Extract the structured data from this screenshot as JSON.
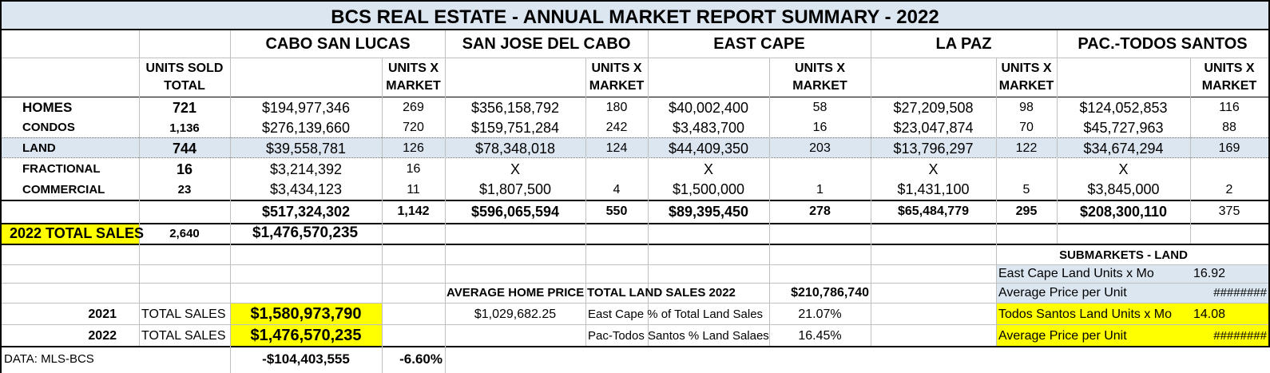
{
  "title": "BCS REAL ESTATE - ANNUAL MARKET REPORT SUMMARY - 2022",
  "markets": [
    "CABO SAN LUCAS",
    "SAN JOSE DEL CABO",
    "EAST CAPE",
    "LA PAZ",
    "PAC.-TODOS SANTOS"
  ],
  "header": {
    "units_sold_total_line1": "UNITS SOLD",
    "units_sold_total_line2": "TOTAL",
    "units_x_market_line1": "UNITS X",
    "units_x_market_line2": "MARKET"
  },
  "rows": [
    {
      "label": "HOMES",
      "total": "721",
      "values": [
        "$194,977,346",
        "$356,158,792",
        "$40,002,400",
        "$27,209,508",
        "$124,052,853"
      ],
      "units": [
        "269",
        "180",
        "58",
        "98",
        "116"
      ]
    },
    {
      "label": "CONDOS",
      "total": "1,136",
      "values": [
        "$276,139,660",
        "$159,751,284",
        "$3,483,700",
        "$23,047,874",
        "$45,727,963"
      ],
      "units": [
        "720",
        "242",
        "16",
        "70",
        "88"
      ]
    },
    {
      "label": "LAND",
      "total": "744",
      "values": [
        "$39,558,781",
        "$78,348,018",
        "$44,409,350",
        "$13,796,297",
        "$34,674,294"
      ],
      "units": [
        "126",
        "124",
        "203",
        "122",
        "169"
      ]
    },
    {
      "label": "FRACTIONAL",
      "total": "16",
      "values": [
        "$3,214,392",
        "X",
        "X",
        "X",
        "X"
      ],
      "units": [
        "16",
        "",
        "",
        "",
        ""
      ]
    },
    {
      "label": "COMMERCIAL",
      "total": "23",
      "values": [
        "$3,434,123",
        "$1,807,500",
        "$1,500,000",
        "$1,431,100",
        "$3,845,000"
      ],
      "units": [
        "11",
        "4",
        "1",
        "5",
        "2"
      ]
    }
  ],
  "totals": {
    "values": [
      "$517,324,302",
      "$596,065,594",
      "$89,395,450",
      "$65,484,779",
      "$208,300,110"
    ],
    "units": [
      "1,142",
      "550",
      "278",
      "295",
      "375"
    ]
  },
  "total_sales_2022": {
    "label": "2022 TOTAL SALES",
    "units": "2,640",
    "amount": "$1,476,570,235"
  },
  "submarkets": {
    "title": "SUBMARKETS - LAND",
    "rows": [
      {
        "label": "East Cape Land Units x Mo",
        "value": "16.92"
      },
      {
        "label": "Average Price per Unit",
        "value": "########"
      },
      {
        "label": "Todos Santos Land Units x Mo",
        "value": "14.08"
      },
      {
        "label": "Average Price per Unit",
        "value": "########"
      }
    ]
  },
  "average_home_price": {
    "label": "AVERAGE HOME PRICE",
    "value": "$1,029,682.25"
  },
  "land_sales": {
    "label": "TOTAL LAND SALES 2022",
    "value": "$210,786,740",
    "east_cape_label": "East Cape % of Total Land Sales",
    "east_cape_value": "21.07%",
    "todos_label": "Pac-Todos Santos % Land Salaes",
    "todos_value": "16.45%"
  },
  "yearly": [
    {
      "year": "2021",
      "label": "TOTAL SALES",
      "amount": "$1,580,973,790"
    },
    {
      "year": "2022",
      "label": "TOTAL SALES",
      "amount": "$1,476,570,235"
    }
  ],
  "footer": {
    "source": "DATA: MLS-BCS",
    "difference": "-$104,403,555",
    "percent": "-6.60%"
  },
  "colors": {
    "highlight": "#ffff00",
    "band": "#dce6f1",
    "border": "#000000",
    "grid": "#bfbfbf"
  }
}
